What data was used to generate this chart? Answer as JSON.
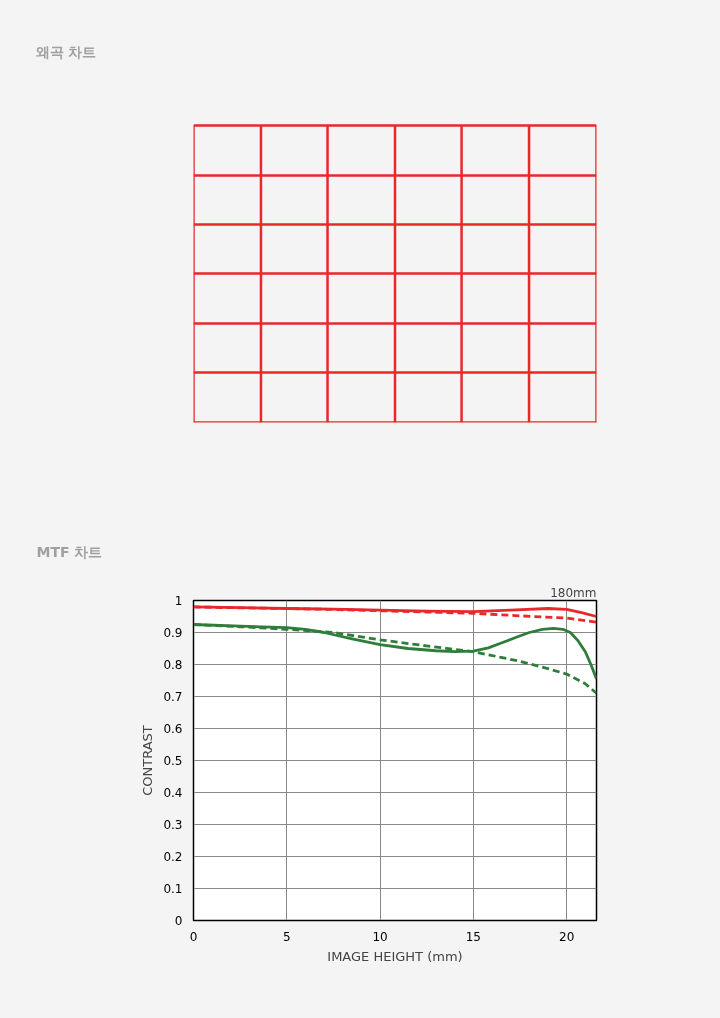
{
  "chart_data": [
    {
      "type": "other",
      "title": "왜곡 차트"
    },
    {
      "type": "line",
      "title": "MTF 차트",
      "xlabel": "IMAGE HEIGHT (mm)",
      "ylabel": "CONTRAST",
      "annotations": [
        "180mm"
      ],
      "xlim": [
        0,
        21.6
      ],
      "ylim": [
        0,
        1
      ],
      "xticks": [
        0,
        5,
        10,
        15,
        20
      ],
      "yticks": [
        0,
        0.1,
        0.2,
        0.3,
        0.4,
        0.5,
        0.6,
        0.7,
        0.8,
        0.9,
        1
      ],
      "grid": true,
      "series": [
        {
          "color": "#e8282a",
          "line_style": "solid",
          "x": [
            0,
            2.5,
            5,
            7.5,
            10,
            12.5,
            15,
            17,
            19,
            20,
            20.8,
            21.6
          ],
          "values": [
            0.98,
            0.978,
            0.975,
            0.973,
            0.97,
            0.967,
            0.965,
            0.97,
            0.975,
            0.972,
            0.962,
            0.95
          ]
        },
        {
          "color": "#e8282a",
          "line_style": "dashed",
          "x": [
            0,
            2.5,
            5,
            7.5,
            10,
            12.5,
            15,
            17.5,
            20,
            21.6
          ],
          "values": [
            0.98,
            0.977,
            0.975,
            0.972,
            0.968,
            0.964,
            0.96,
            0.952,
            0.945,
            0.932
          ]
        },
        {
          "color": "#2e7d3a",
          "line_style": "solid",
          "x": [
            0,
            2.5,
            5,
            6,
            7,
            8.5,
            10,
            11.5,
            13,
            14,
            15,
            15.8,
            16.5,
            17.3,
            18,
            18.7,
            19.3,
            19.8,
            20.2,
            20.6,
            21,
            21.3,
            21.6
          ],
          "values": [
            0.925,
            0.92,
            0.915,
            0.91,
            0.9,
            0.88,
            0.862,
            0.85,
            0.843,
            0.84,
            0.842,
            0.852,
            0.867,
            0.885,
            0.9,
            0.91,
            0.913,
            0.91,
            0.9,
            0.875,
            0.84,
            0.8,
            0.755
          ]
        },
        {
          "color": "#2e7d3a",
          "line_style": "dashed",
          "x": [
            0,
            2.5,
            5,
            7.5,
            10,
            12.5,
            15,
            17.5,
            19,
            20,
            21,
            21.6
          ],
          "values": [
            0.925,
            0.918,
            0.91,
            0.9,
            0.877,
            0.858,
            0.84,
            0.81,
            0.787,
            0.77,
            0.74,
            0.71
          ]
        }
      ]
    }
  ]
}
